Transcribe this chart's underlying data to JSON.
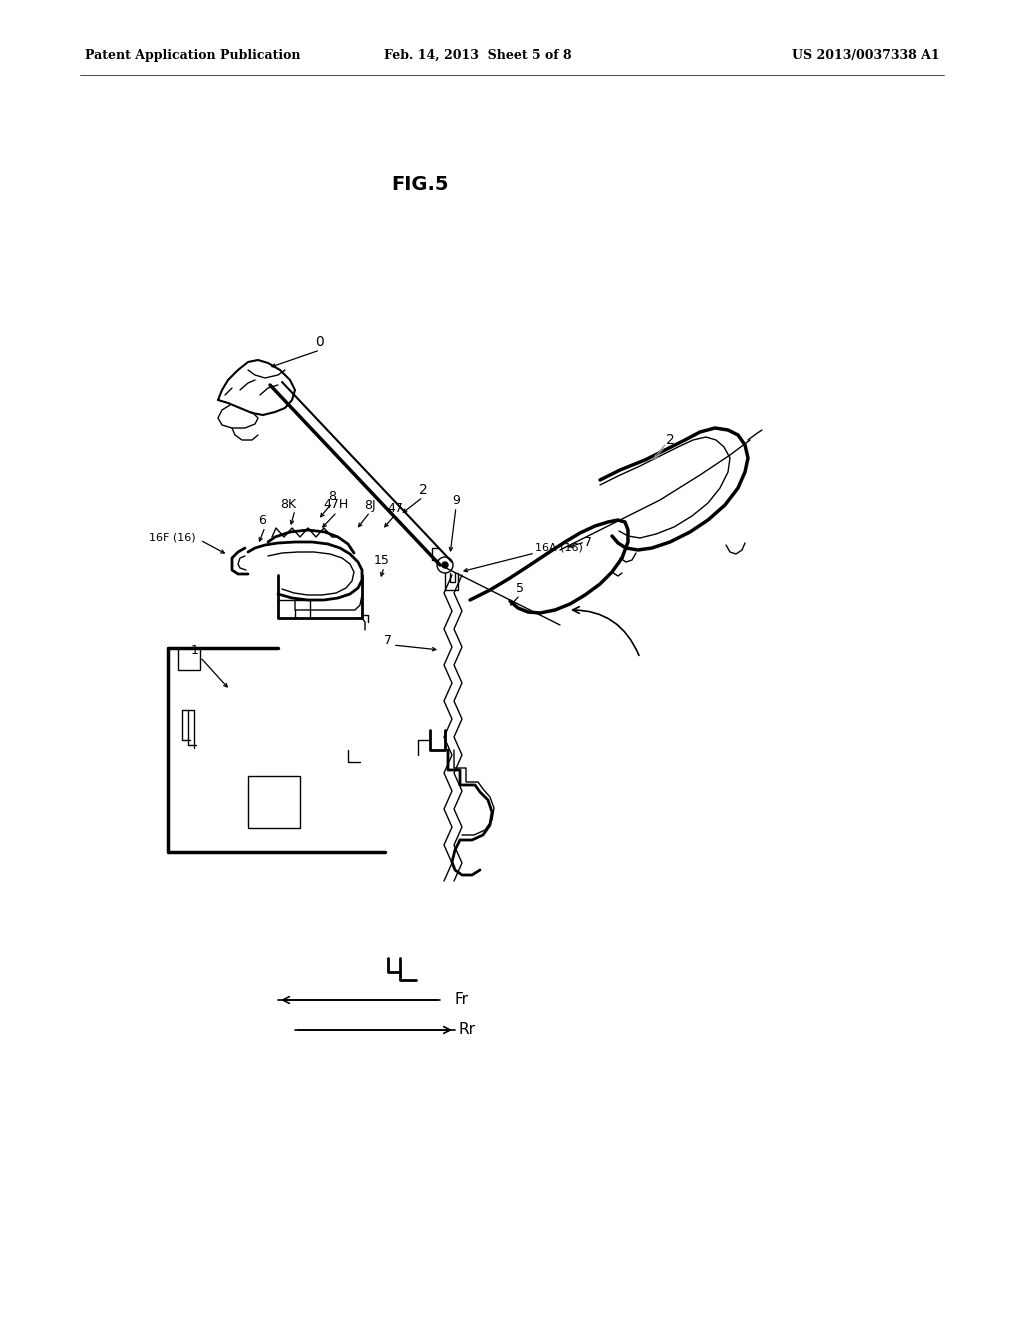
{
  "bg_color": "#ffffff",
  "header_left": "Patent Application Publication",
  "header_center": "Feb. 14, 2013  Sheet 5 of 8",
  "header_right": "US 2013/0037338 A1",
  "fig_title": "FIG.5",
  "arrow_fr_label": "Fr",
  "arrow_rr_label": "Rr"
}
